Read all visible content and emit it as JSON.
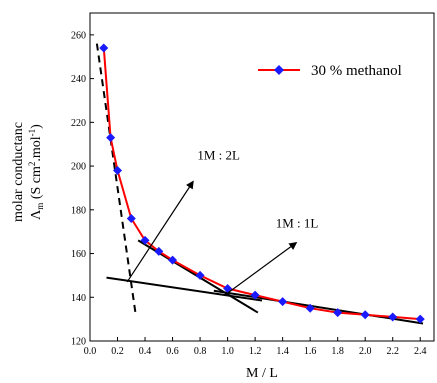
{
  "chart_data": {
    "type": "line",
    "title": "",
    "xlabel": "M / L",
    "ylabel_line1": "molar conductanc",
    "ylabel_symbol": "Λ",
    "ylabel_symbol_sub": "m",
    "ylabel_unit_open": "(S cm",
    "ylabel_unit_exp1": "2",
    "ylabel_unit_mid": ".mol",
    "ylabel_unit_exp2": "-1",
    "ylabel_unit_close": ")",
    "xlim": [
      0.0,
      2.5
    ],
    "ylim": [
      120,
      270
    ],
    "x_ticks": [
      {
        "value": 0.0,
        "label": "0.0"
      },
      {
        "value": 0.2,
        "label": "0.2"
      },
      {
        "value": 0.4,
        "label": "0.4"
      },
      {
        "value": 0.6,
        "label": "0.6"
      },
      {
        "value": 0.8,
        "label": "0.8"
      },
      {
        "value": 1.0,
        "label": "1.0"
      },
      {
        "value": 1.2,
        "label": "1.2"
      },
      {
        "value": 1.4,
        "label": "1.4"
      },
      {
        "value": 1.6,
        "label": "1.6"
      },
      {
        "value": 1.8,
        "label": "1.8"
      },
      {
        "value": 2.0,
        "label": "2.0"
      },
      {
        "value": 2.2,
        "label": "2.2"
      },
      {
        "value": 2.4,
        "label": "2.4"
      }
    ],
    "y_ticks": [
      {
        "value": 120,
        "label": "120"
      },
      {
        "value": 140,
        "label": "140"
      },
      {
        "value": 160,
        "label": "160"
      },
      {
        "value": 180,
        "label": "180"
      },
      {
        "value": 200,
        "label": "200"
      },
      {
        "value": 220,
        "label": "220"
      },
      {
        "value": 240,
        "label": "240"
      },
      {
        "value": 260,
        "label": "260"
      }
    ],
    "grid": false,
    "legend_position": "top-right",
    "series": [
      {
        "name": "30 % methanol",
        "line_color": "#ff0000",
        "marker_color": "#1a1aff",
        "marker": "diamond",
        "x": [
          0.1,
          0.15,
          0.2,
          0.3,
          0.4,
          0.5,
          0.6,
          0.8,
          1.0,
          1.2,
          1.4,
          1.6,
          1.8,
          2.0,
          2.2,
          2.4
        ],
        "y": [
          254,
          213,
          198,
          176,
          166,
          161,
          157,
          150,
          144,
          141,
          138,
          135,
          133,
          132,
          131,
          130
        ]
      }
    ],
    "fit_lines": [
      {
        "style": "solid",
        "x": [
          0.35,
          1.22
        ],
        "y": [
          166,
          133
        ]
      },
      {
        "style": "solid",
        "x": [
          0.12,
          1.25
        ],
        "y": [
          149,
          138.5
        ]
      },
      {
        "style": "solid",
        "x": [
          0.9,
          2.42
        ],
        "y": [
          143,
          128
        ]
      },
      {
        "style": "dashed",
        "x": [
          0.05,
          0.33
        ],
        "y": [
          256,
          133
        ]
      }
    ],
    "annotations": [
      {
        "text": "1M : 2L",
        "text_x": 0.78,
        "text_y": 203,
        "arrow_from": [
          0.27,
          147
        ],
        "arrow_to": [
          0.75,
          193
        ]
      },
      {
        "text": "1M : 1L",
        "text_x": 1.35,
        "text_y": 172,
        "arrow_from": [
          0.98,
          141
        ],
        "arrow_to": [
          1.5,
          165
        ]
      }
    ]
  }
}
